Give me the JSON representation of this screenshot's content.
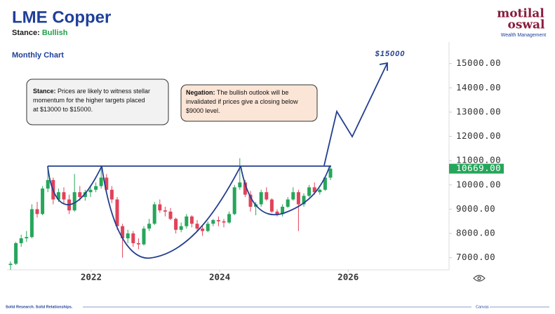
{
  "header": {
    "title": "LME Copper",
    "stance_label": "Stance:",
    "stance_value": "Bullish"
  },
  "logo": {
    "line1": "motilal",
    "line2": "oswal",
    "tagline": "Wealth Management"
  },
  "footer": {
    "left": "Solid Research. Solid Relationships.",
    "right": "Canvas"
  },
  "chart_data": {
    "type": "candlestick",
    "subtitle": "Monthly Chart",
    "up_color": "#26a65b",
    "down_color": "#e0435a",
    "ylim": [
      6500,
      15800
    ],
    "yticks": [
      {
        "value": 7000,
        "label": "7000.00"
      },
      {
        "value": 8000,
        "label": "8000.00"
      },
      {
        "value": 9000,
        "label": "9000.00"
      },
      {
        "value": 10000,
        "label": "10000.00"
      },
      {
        "value": 11000,
        "label": "11000.00"
      },
      {
        "value": 12000,
        "label": "12000.00"
      },
      {
        "value": 13000,
        "label": "13000.00"
      },
      {
        "value": 14000,
        "label": "14000.00"
      },
      {
        "value": 15000,
        "label": "15000.00"
      }
    ],
    "xlim": [
      2020.69,
      2027.57
    ],
    "xticks": [
      2022,
      2024,
      2026
    ],
    "last_price": {
      "value": 10669,
      "label": "10669.00",
      "color": "#26a65b"
    },
    "ohlc": [
      [
        6700,
        6850,
        6500,
        6750
      ],
      [
        6750,
        7650,
        6700,
        7600
      ],
      [
        7600,
        7950,
        7450,
        7800
      ],
      [
        7800,
        8100,
        7650,
        7850
      ],
      [
        7850,
        9200,
        7800,
        9000
      ],
      [
        9000,
        9300,
        8650,
        8800
      ],
      [
        8800,
        9950,
        8750,
        9850
      ],
      [
        9850,
        10700,
        9700,
        10200
      ],
      [
        10200,
        10300,
        9200,
        9400
      ],
      [
        9400,
        9850,
        9300,
        9700
      ],
      [
        9700,
        9900,
        9200,
        9400
      ],
      [
        9400,
        9600,
        8800,
        8950
      ],
      [
        8950,
        10450,
        8900,
        9700
      ],
      [
        9700,
        9950,
        9350,
        9500
      ],
      [
        9500,
        9800,
        9350,
        9700
      ],
      [
        9700,
        10000,
        9500,
        9800
      ],
      [
        9800,
        10100,
        9700,
        9950
      ],
      [
        9950,
        10800,
        9850,
        10300
      ],
      [
        10300,
        10450,
        9700,
        9800
      ],
      [
        9800,
        9950,
        9250,
        9400
      ],
      [
        9400,
        9500,
        8150,
        8300
      ],
      [
        8300,
        8400,
        7000,
        7800
      ],
      [
        7800,
        8150,
        7600,
        8000
      ],
      [
        8000,
        8100,
        7450,
        7600
      ],
      [
        7600,
        7800,
        7350,
        7550
      ],
      [
        7550,
        8300,
        7500,
        8200
      ],
      [
        8200,
        8600,
        8100,
        8400
      ],
      [
        8400,
        9300,
        8350,
        9200
      ],
      [
        9200,
        9400,
        8850,
        8950
      ],
      [
        8950,
        9100,
        8700,
        8900
      ],
      [
        8900,
        9050,
        8550,
        8600
      ],
      [
        8600,
        8650,
        8000,
        8150
      ],
      [
        8150,
        8450,
        8050,
        8300
      ],
      [
        8300,
        8800,
        8200,
        8700
      ],
      [
        8700,
        8750,
        8250,
        8400
      ],
      [
        8400,
        8550,
        8100,
        8200
      ],
      [
        8200,
        8300,
        7900,
        8100
      ],
      [
        8100,
        8500,
        8050,
        8400
      ],
      [
        8400,
        8600,
        8300,
        8550
      ],
      [
        8550,
        8700,
        8300,
        8500
      ],
      [
        8500,
        8600,
        8250,
        8450
      ],
      [
        8450,
        8900,
        8400,
        8800
      ],
      [
        8800,
        10000,
        8750,
        9900
      ],
      [
        9900,
        11100,
        9800,
        10100
      ],
      [
        10100,
        10200,
        9500,
        9600
      ],
      [
        9600,
        9750,
        8900,
        9100
      ],
      [
        9100,
        9300,
        8750,
        9200
      ],
      [
        9200,
        9800,
        9100,
        9700
      ],
      [
        9700,
        9900,
        9350,
        9400
      ],
      [
        9400,
        9450,
        8850,
        8900
      ],
      [
        8900,
        9000,
        8700,
        8800
      ],
      [
        8800,
        9200,
        8700,
        9100
      ],
      [
        9100,
        9500,
        9050,
        9400
      ],
      [
        9400,
        9900,
        9350,
        9700
      ],
      [
        9700,
        9800,
        8100,
        9200
      ],
      [
        9200,
        9650,
        9100,
        9550
      ],
      [
        9550,
        10000,
        9500,
        9900
      ],
      [
        9900,
        10100,
        9600,
        9700
      ],
      [
        9700,
        9850,
        9600,
        9800
      ],
      [
        9800,
        10350,
        9750,
        10300
      ],
      [
        10300,
        10800,
        10200,
        10669
      ]
    ]
  },
  "annotations": {
    "target": "$15000",
    "stance_box": {
      "label": "Stance:",
      "lines": [
        " Prices are likely to witness stellar",
        "momentum for the higher targets placed",
        "at $13000 to $15000."
      ]
    },
    "negation_box": {
      "label": "Negation:",
      "lines": [
        " The bullish outlook will be",
        "invalidated if prices give a closing below",
        "$9000 level."
      ]
    }
  }
}
